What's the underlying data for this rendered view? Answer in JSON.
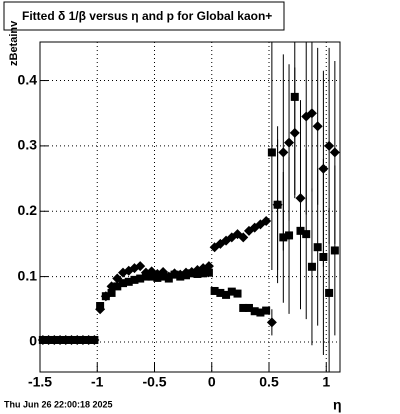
{
  "chart_data": {
    "type": "scatter",
    "title": "Fitted δ 1/β versus η and p for Global kaon+",
    "x_label": "η",
    "y_label": "zBetainv",
    "footer": "Thu Jun 26 22:00:18 2025",
    "xlim": [
      -1.5,
      1.12
    ],
    "ylim": [
      -0.046,
      0.459
    ],
    "xticks": [
      -1.5,
      -1,
      -0.5,
      0,
      0.5,
      1
    ],
    "yticks": [
      0,
      0.1,
      0.2,
      0.3,
      0.4
    ],
    "grid": true,
    "x": [
      -1.475,
      -1.425,
      -1.375,
      -1.325,
      -1.275,
      -1.225,
      -1.175,
      -1.125,
      -1.075,
      -1.025,
      -0.975,
      -0.925,
      -0.875,
      -0.825,
      -0.775,
      -0.725,
      -0.675,
      -0.625,
      -0.575,
      -0.525,
      -0.475,
      -0.425,
      -0.375,
      -0.325,
      -0.275,
      -0.225,
      -0.175,
      -0.125,
      -0.075,
      -0.025,
      0.025,
      0.075,
      0.125,
      0.175,
      0.225,
      0.275,
      0.325,
      0.375,
      0.425,
      0.475,
      0.525,
      0.575,
      0.625,
      0.675,
      0.725,
      0.775,
      0.825,
      0.875,
      0.925,
      0.975,
      1.025,
      1.075
    ],
    "series": [
      {
        "marker": "diamond",
        "color": "#000000",
        "values": [
          0.003,
          0.003,
          0.003,
          0.003,
          0.003,
          0.003,
          0.003,
          0.003,
          0.003,
          0.003,
          0.05,
          0.07,
          0.085,
          0.097,
          0.106,
          0.109,
          0.113,
          0.116,
          0.106,
          0.108,
          0.104,
          0.107,
          0.1,
          0.105,
          0.103,
          0.106,
          0.107,
          0.11,
          0.113,
          0.116,
          0.145,
          0.15,
          0.155,
          0.16,
          0.165,
          0.16,
          0.17,
          0.175,
          0.18,
          0.185,
          0.03,
          0.21,
          0.29,
          0.305,
          0.32,
          0.22,
          0.345,
          0.35,
          0.33,
          0.265,
          0.3,
          0.29
        ],
        "errors": [
          0,
          0,
          0,
          0,
          0,
          0,
          0,
          0,
          0,
          0,
          0,
          0,
          0,
          0,
          0,
          0,
          0,
          0,
          0,
          0,
          0,
          0,
          0,
          0,
          0,
          0,
          0,
          0,
          0,
          0,
          0,
          0,
          0,
          0,
          0,
          0,
          0,
          0,
          0,
          0,
          0.02,
          0.1,
          0.15,
          0.12,
          0.1,
          0.15,
          0.15,
          0.12,
          0.12,
          0.15,
          0.15,
          0.14
        ]
      },
      {
        "marker": "square",
        "color": "#000000",
        "values": [
          0.003,
          0.003,
          0.003,
          0.003,
          0.003,
          0.003,
          0.003,
          0.003,
          0.003,
          0.003,
          0.055,
          0.07,
          0.075,
          0.085,
          0.09,
          0.092,
          0.095,
          0.097,
          0.1,
          0.1,
          0.098,
          0.1,
          0.097,
          0.103,
          0.1,
          0.102,
          0.105,
          0.104,
          0.105,
          0.106,
          0.078,
          0.075,
          0.072,
          0.077,
          0.074,
          0.052,
          0.052,
          0.047,
          0.045,
          0.048,
          0.29,
          0.21,
          0.16,
          0.163,
          0.375,
          0.17,
          0.165,
          0.115,
          0.145,
          0.13,
          0.075,
          0.14
        ],
        "errors": [
          0,
          0,
          0,
          0,
          0,
          0,
          0,
          0,
          0,
          0,
          0,
          0,
          0,
          0,
          0,
          0,
          0,
          0,
          0,
          0,
          0,
          0,
          0,
          0,
          0,
          0,
          0,
          0,
          0,
          0,
          0,
          0,
          0,
          0,
          0,
          0,
          0,
          0,
          0,
          0,
          0.18,
          0.12,
          0.1,
          0.12,
          0.15,
          0.12,
          0.13,
          0.12,
          0.12,
          0.15,
          0.13,
          0.13
        ]
      }
    ]
  }
}
